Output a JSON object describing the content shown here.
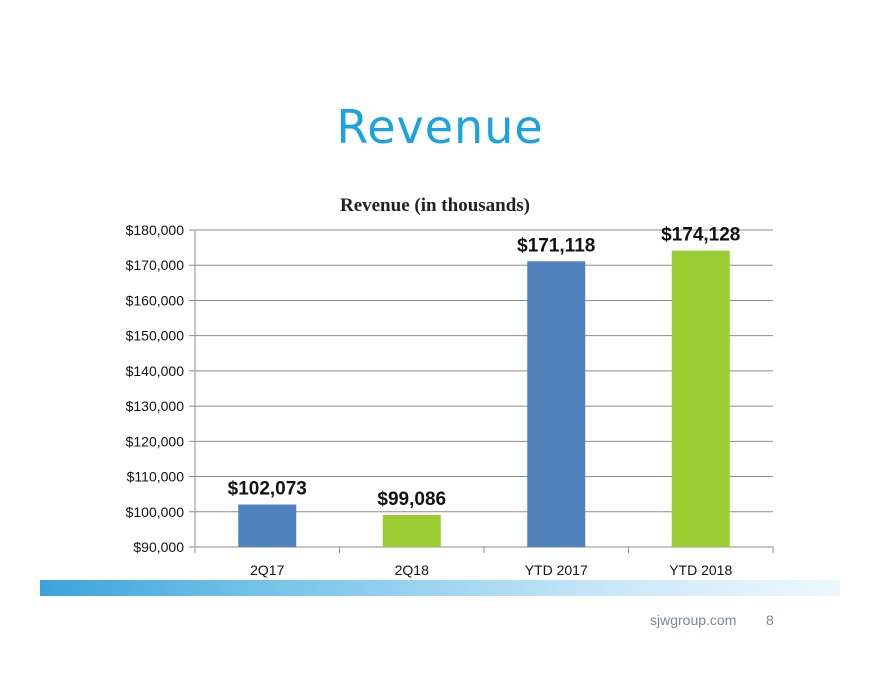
{
  "slide": {
    "title": "Revenue",
    "footer_site": "sjwgroup.com",
    "page_number": "8"
  },
  "colors": {
    "title": "#1aa3e0",
    "blue_bar": "#4f81bd",
    "green_bar": "#9acd32",
    "grid": "#8c8c8c"
  },
  "chart_data": {
    "type": "bar",
    "title": "Revenue (in thousands)",
    "xlabel": "",
    "ylabel": "",
    "categories": [
      "2Q17",
      "2Q18",
      "YTD 2017",
      "YTD 2018"
    ],
    "values": [
      102073,
      99086,
      171118,
      174128
    ],
    "value_labels": [
      "$102,073",
      "$99,086",
      "$171,118",
      "$174,128"
    ],
    "bar_colors": [
      "#4f81bd",
      "#9acd32",
      "#4f81bd",
      "#9acd32"
    ],
    "ylim": [
      90000,
      180000
    ],
    "yticks": [
      90000,
      100000,
      110000,
      120000,
      130000,
      140000,
      150000,
      160000,
      170000,
      180000
    ],
    "ytick_labels": [
      "$90,000",
      "$100,000",
      "$110,000",
      "$120,000",
      "$130,000",
      "$140,000",
      "$150,000",
      "$160,000",
      "$170,000",
      "$180,000"
    ],
    "grid": true,
    "legend": "none"
  }
}
